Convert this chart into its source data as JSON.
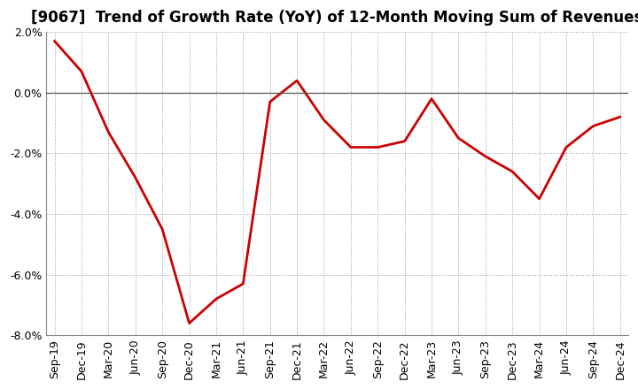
{
  "title": "[9067]  Trend of Growth Rate (YoY) of 12-Month Moving Sum of Revenues",
  "x_labels": [
    "Sep-19",
    "Dec-19",
    "Mar-20",
    "Jun-20",
    "Sep-20",
    "Dec-20",
    "Mar-21",
    "Jun-21",
    "Sep-21",
    "Dec-21",
    "Mar-22",
    "Jun-22",
    "Sep-22",
    "Dec-22",
    "Mar-23",
    "Jun-23",
    "Sep-23",
    "Dec-23",
    "Mar-24",
    "Jun-24",
    "Sep-24",
    "Dec-24"
  ],
  "y_values": [
    1.7,
    0.7,
    -1.3,
    -2.8,
    -4.5,
    -7.6,
    -6.8,
    -6.3,
    -0.3,
    0.4,
    -0.9,
    -1.8,
    -1.8,
    -1.6,
    -0.2,
    -1.5,
    -2.1,
    -2.6,
    -3.5,
    -1.8,
    -1.1,
    -0.8
  ],
  "line_color": "#cc0000",
  "line_width": 2.0,
  "ylim": [
    -8.0,
    2.0
  ],
  "ytick_values": [
    -8.0,
    -6.0,
    -4.0,
    -2.0,
    0.0,
    2.0
  ],
  "background_color": "#ffffff",
  "grid_color": "#999999",
  "title_fontsize": 12,
  "axis_fontsize": 9,
  "zero_line_color": "#555555"
}
